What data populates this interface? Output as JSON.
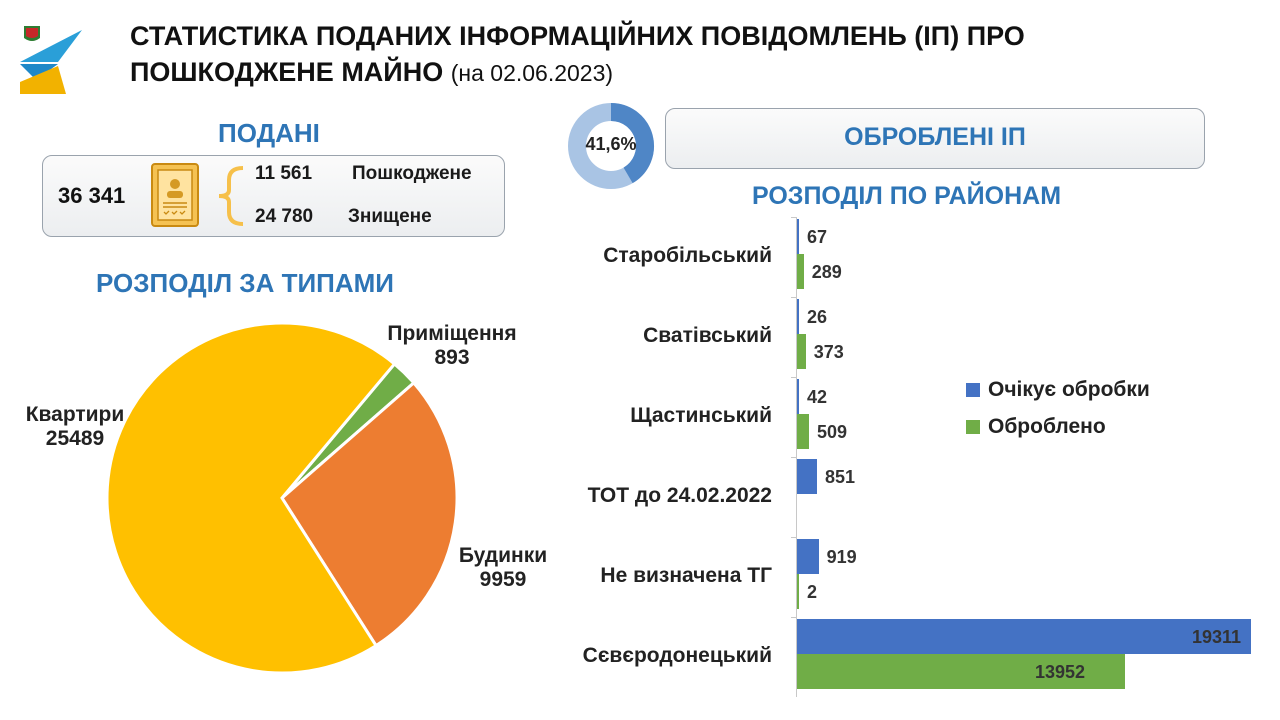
{
  "header": {
    "title_line1": "СТАТИСТИКА ПОДАНИХ ІНФОРМАЦІЙНИХ ПОВІДОМЛЕНЬ (ІП) ПРО",
    "title_line2": "ПОШКОДЖЕНЕ МАЙНО",
    "date_note": "(на 02.06.2023)"
  },
  "submitted": {
    "heading": "ПОДАНІ",
    "total": "36 341",
    "damaged_value": "11 561",
    "damaged_label": "Пошкоджене",
    "destroyed_value": "24 780",
    "destroyed_label": "Знищене"
  },
  "processed": {
    "heading": "ОБРОБЛЕНІ ІП",
    "percent_label": "41,6%",
    "percent": 41.6
  },
  "chart_data": [
    {
      "type": "pie",
      "title": "РОЗПОДІЛ ЗА ТИПАМИ",
      "slices": [
        {
          "label": "Приміщення",
          "value": 893,
          "color": "#70ad47"
        },
        {
          "label": "Будинки",
          "value": 9959,
          "color": "#ed7d31"
        },
        {
          "label": "Квартири",
          "value": 25489,
          "color": "#ffc000"
        }
      ]
    },
    {
      "type": "bar",
      "orientation": "horizontal",
      "title": "РОЗПОДІЛ ПО РАЙОНАМ",
      "categories": [
        "Старобільський",
        "Сватівський",
        "Щастинський",
        "ТОТ до 24.02.2022",
        "Не визначена ТГ",
        "Сєвєродонецький"
      ],
      "series": [
        {
          "name": "Очікує обробки",
          "color": "#4472c4",
          "values": [
            67,
            26,
            42,
            851,
            919,
            19311
          ]
        },
        {
          "name": "Оброблено",
          "color": "#70ad47",
          "values": [
            289,
            373,
            509,
            null,
            2,
            13952
          ]
        }
      ],
      "legend_position": "right"
    }
  ]
}
